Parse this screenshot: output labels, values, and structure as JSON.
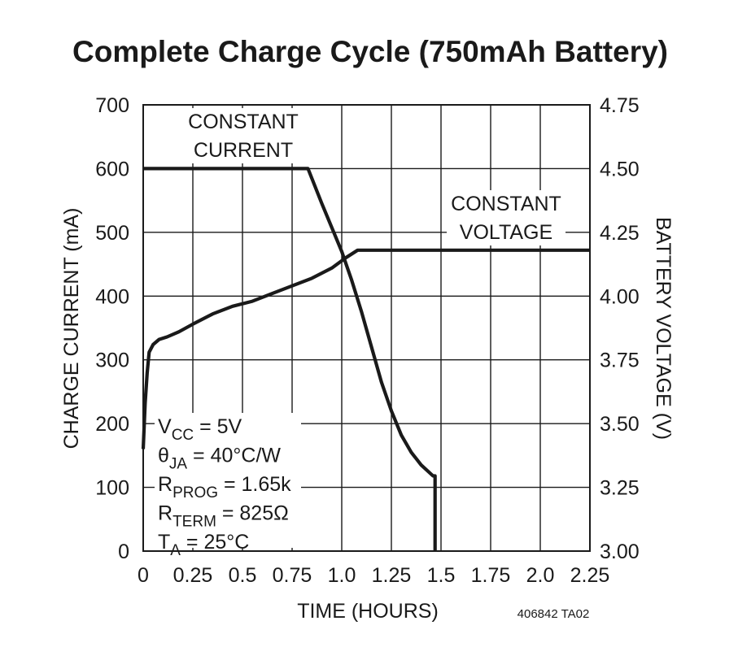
{
  "chart_data": {
    "type": "line",
    "title": "Complete Charge Cycle (750mAh Battery)",
    "xlabel": "TIME (HOURS)",
    "ylabel_left": "CHARGE CURRENT (mA)",
    "ylabel_right": "BATTERY VOLTAGE (V)",
    "xlim": [
      0,
      2.25
    ],
    "ylim_left": [
      0,
      700
    ],
    "ylim_right": [
      3.0,
      4.75
    ],
    "x_ticks": [
      "0",
      "0.25",
      "0.5",
      "0.75",
      "1.0",
      "1.25",
      "1.5",
      "1.75",
      "2.0",
      "2.25"
    ],
    "y_ticks_left": [
      "0",
      "100",
      "200",
      "300",
      "400",
      "500",
      "600",
      "700"
    ],
    "y_ticks_right": [
      "3.00",
      "3.25",
      "3.50",
      "3.75",
      "4.00",
      "4.25",
      "4.50",
      "4.75"
    ],
    "grid": true,
    "series": [
      {
        "axis": "left",
        "x": [
          0,
          0.83,
          0.9,
          1.0,
          1.05,
          1.1,
          1.15,
          1.2,
          1.25,
          1.3,
          1.35,
          1.4,
          1.46,
          1.47,
          1.47
        ],
        "y": [
          600,
          600,
          545,
          470,
          425,
          375,
          320,
          265,
          220,
          182,
          155,
          135,
          118,
          118,
          0
        ]
      },
      {
        "axis": "right",
        "x": [
          0,
          0.01,
          0.02,
          0.03,
          0.05,
          0.08,
          0.12,
          0.18,
          0.25,
          0.35,
          0.45,
          0.55,
          0.65,
          0.75,
          0.85,
          0.95,
          1.02,
          1.08,
          2.25
        ],
        "y": [
          3.4,
          3.58,
          3.7,
          3.78,
          3.81,
          3.83,
          3.84,
          3.86,
          3.89,
          3.93,
          3.96,
          3.98,
          4.01,
          4.04,
          4.07,
          4.11,
          4.15,
          4.18,
          4.18
        ]
      }
    ],
    "annotations": {
      "constant_current": [
        "CONSTANT",
        "CURRENT"
      ],
      "constant_voltage": [
        "CONSTANT",
        "VOLTAGE"
      ],
      "conditions": [
        {
          "base": "V",
          "sub": "CC",
          "rest": " = 5V"
        },
        {
          "base": "θ",
          "sub": "JA",
          "rest": " = 40°C/W"
        },
        {
          "base": "R",
          "sub": "PROG",
          "rest": " = 1.65k"
        },
        {
          "base": "R",
          "sub": "TERM",
          "rest": " = 825Ω"
        },
        {
          "base": "T",
          "sub": "A",
          "rest": " = 25°C"
        }
      ],
      "figure_code": "406842 TA02"
    }
  }
}
